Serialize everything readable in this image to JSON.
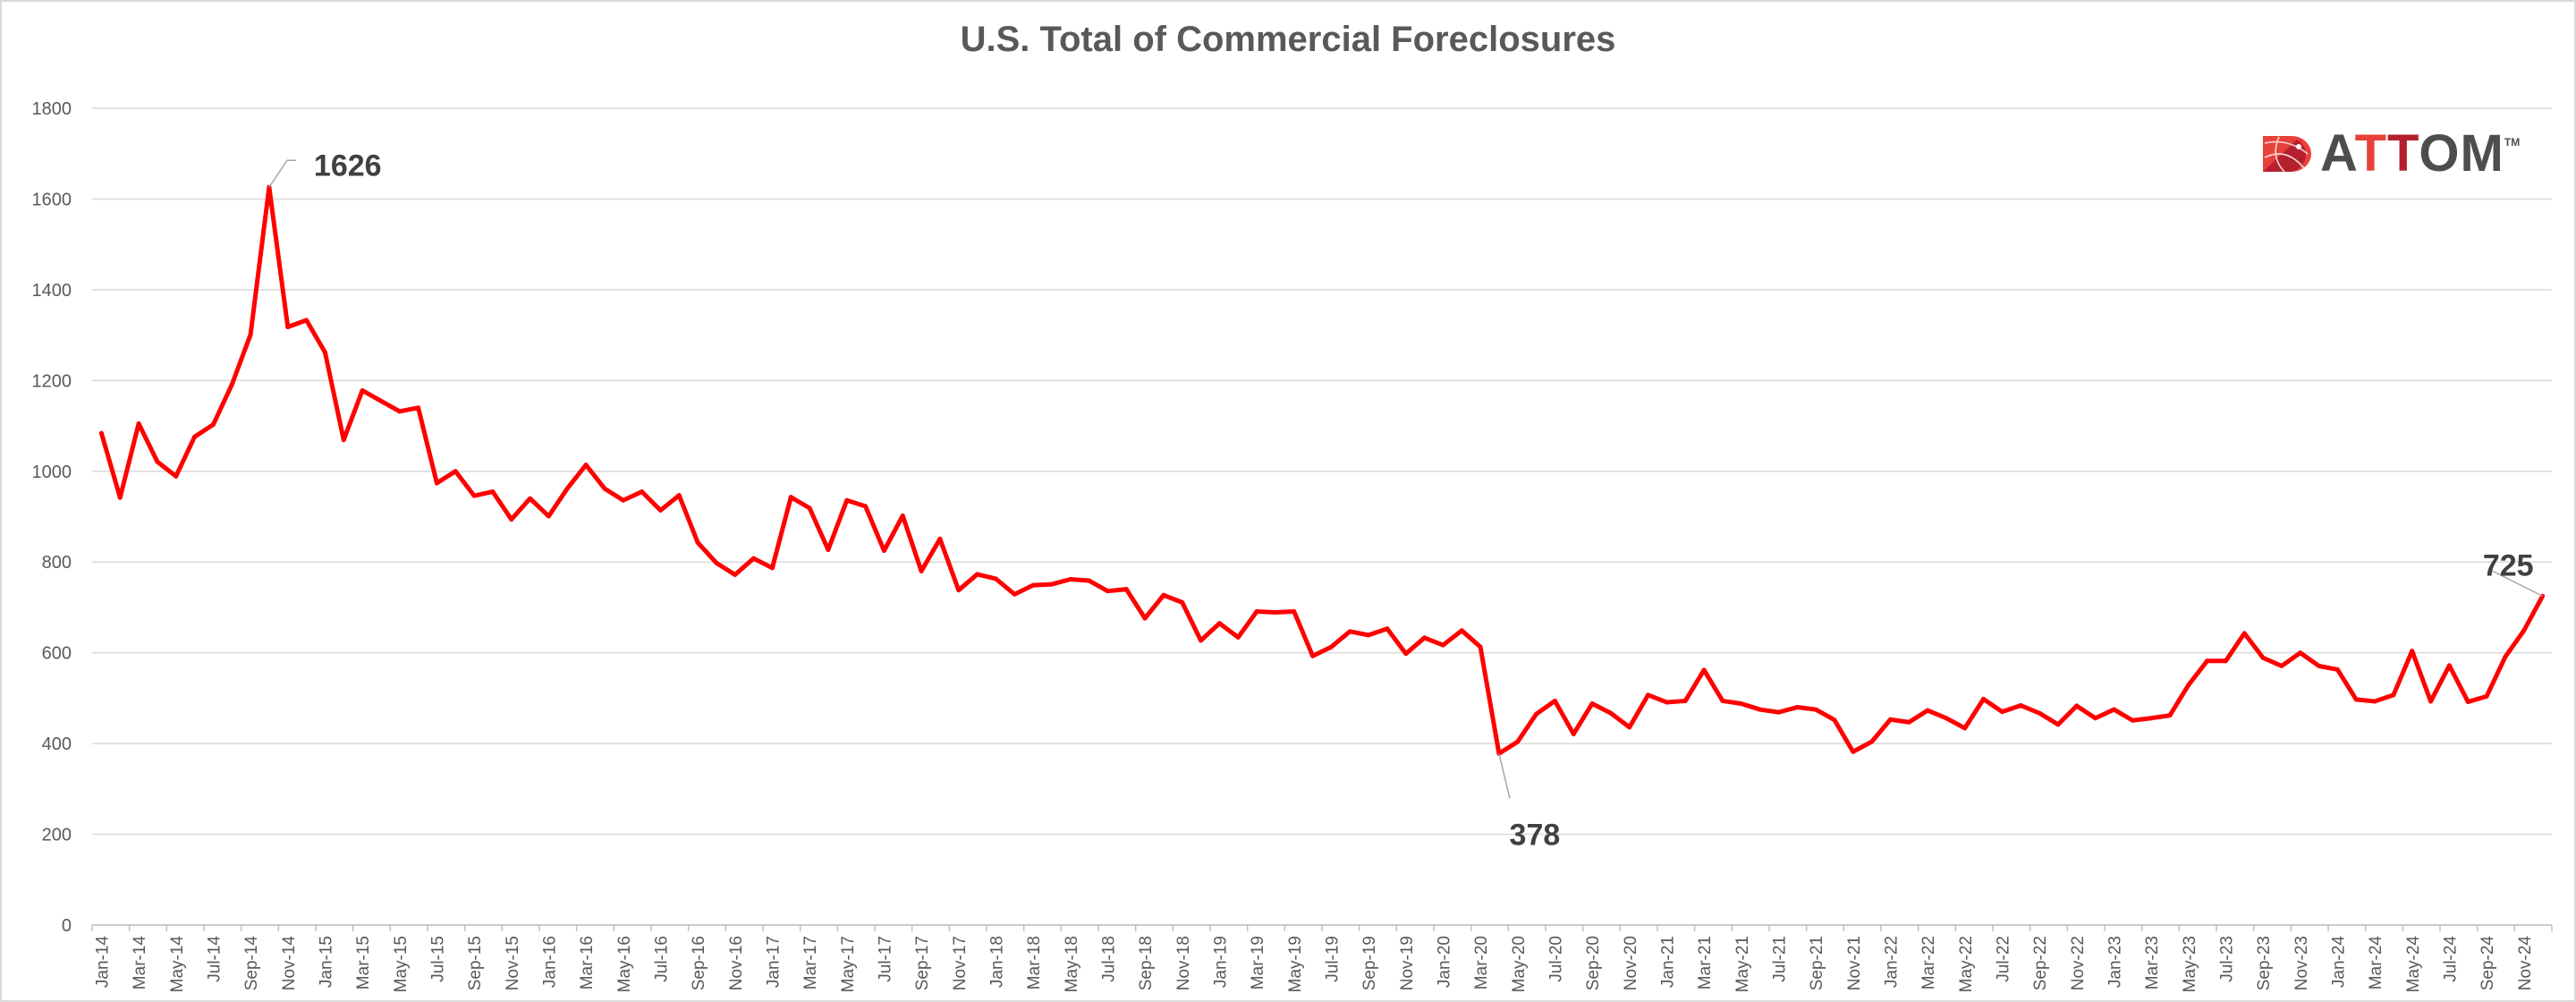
{
  "chart_data": {
    "type": "line",
    "title": "U.S. Total of Commercial Foreclosures",
    "xlabel": "",
    "ylabel": "",
    "ylim": [
      0,
      1800
    ],
    "yticks": [
      0,
      200,
      400,
      600,
      800,
      1000,
      1200,
      1400,
      1600,
      1800
    ],
    "grid": true,
    "legend": "none",
    "line_color": "#ff0000",
    "start": "Jan-14",
    "x": [
      "Jan-14",
      "Feb-14",
      "Mar-14",
      "Apr-14",
      "May-14",
      "Jun-14",
      "Jul-14",
      "Aug-14",
      "Sep-14",
      "Oct-14",
      "Nov-14",
      "Dec-14",
      "Jan-15",
      "Feb-15",
      "Mar-15",
      "Apr-15",
      "May-15",
      "Jun-15",
      "Jul-15",
      "Aug-15",
      "Sep-15",
      "Oct-15",
      "Nov-15",
      "Dec-15",
      "Jan-16",
      "Feb-16",
      "Mar-16",
      "Apr-16",
      "May-16",
      "Jun-16",
      "Jul-16",
      "Aug-16",
      "Sep-16",
      "Oct-16",
      "Nov-16",
      "Dec-16",
      "Jan-17",
      "Feb-17",
      "Mar-17",
      "Apr-17",
      "May-17",
      "Jun-17",
      "Jul-17",
      "Aug-17",
      "Sep-17",
      "Oct-17",
      "Nov-17",
      "Dec-17",
      "Jan-18",
      "Feb-18",
      "Mar-18",
      "Apr-18",
      "May-18",
      "Jun-18",
      "Jul-18",
      "Aug-18",
      "Sep-18",
      "Oct-18",
      "Nov-18",
      "Dec-18",
      "Jan-19",
      "Feb-19",
      "Mar-19",
      "Apr-19",
      "May-19",
      "Jun-19",
      "Jul-19",
      "Aug-19",
      "Sep-19",
      "Oct-19",
      "Nov-19",
      "Dec-19",
      "Jan-20",
      "Feb-20",
      "Mar-20",
      "Apr-20",
      "May-20",
      "Jun-20",
      "Jul-20",
      "Aug-20",
      "Sep-20",
      "Oct-20",
      "Nov-20",
      "Dec-20",
      "Jan-21",
      "Feb-21",
      "Mar-21",
      "Apr-21",
      "May-21",
      "Jun-21",
      "Jul-21",
      "Aug-21",
      "Sep-21",
      "Oct-21",
      "Nov-21",
      "Dec-21",
      "Jan-22",
      "Feb-22",
      "Mar-22",
      "Apr-22",
      "May-22",
      "Jun-22",
      "Jul-22",
      "Aug-22",
      "Sep-22",
      "Oct-22",
      "Nov-22",
      "Dec-22",
      "Jan-23",
      "Feb-23",
      "Mar-23",
      "Apr-23",
      "May-23",
      "Jun-23",
      "Jul-23",
      "Aug-23",
      "Sep-23",
      "Oct-23",
      "Nov-23",
      "Dec-23",
      "Jan-24",
      "Feb-24",
      "Mar-24",
      "Apr-24",
      "May-24",
      "Jun-24",
      "Jul-24",
      "Aug-24",
      "Sep-24",
      "Oct-24",
      "Nov-24",
      "Dec-24"
    ],
    "values": [
      1084,
      942,
      1105,
      1021,
      989,
      1076,
      1103,
      1191,
      1301,
      1626,
      1318,
      1333,
      1262,
      1069,
      1178,
      1155,
      1132,
      1140,
      974,
      1000,
      946,
      955,
      894,
      940,
      901,
      962,
      1014,
      962,
      936,
      955,
      914,
      947,
      843,
      798,
      772,
      808,
      787,
      943,
      919,
      827,
      936,
      923,
      825,
      902,
      780,
      851,
      738,
      773,
      763,
      729,
      749,
      751,
      762,
      759,
      736,
      740,
      676,
      727,
      711,
      627,
      665,
      634,
      691,
      689,
      691,
      593,
      613,
      647,
      639,
      653,
      598,
      633,
      617,
      649,
      613,
      378,
      404,
      465,
      494,
      421,
      488,
      467,
      436,
      507,
      491,
      494,
      562,
      494,
      488,
      475,
      469,
      480,
      475,
      452,
      382,
      404,
      453,
      447,
      473,
      456,
      434,
      498,
      470,
      484,
      467,
      442,
      483,
      456,
      475,
      451,
      456,
      462,
      529,
      582,
      582,
      643,
      589,
      571,
      600,
      571,
      563,
      497,
      493,
      507,
      604,
      493,
      572,
      492,
      504,
      591,
      649,
      725
    ],
    "annotations": [
      {
        "x": "Oct-14",
        "text": "1626"
      },
      {
        "x": "Apr-20",
        "text": "378"
      },
      {
        "x": "Dec-24",
        "text": "725"
      }
    ]
  },
  "logo": {
    "text": "ATTOM",
    "tm": "TM"
  }
}
